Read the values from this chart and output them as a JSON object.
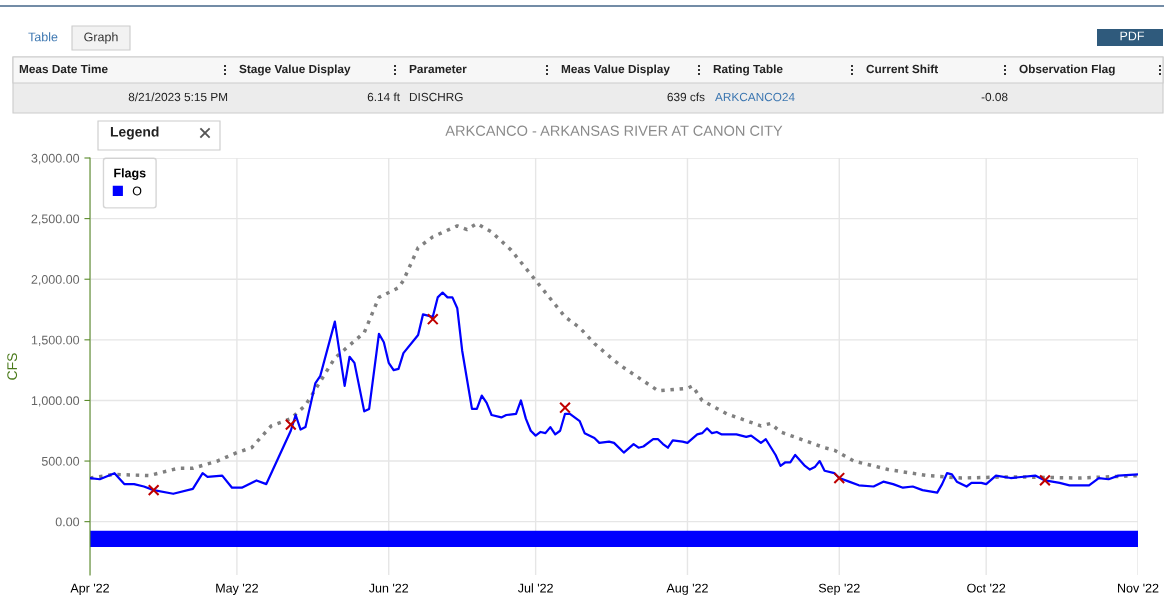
{
  "chart_data": {
    "type": "line",
    "title": "ARKCANCO - ARKANSAS RIVER AT CANON CITY",
    "ylabel": "CFS",
    "xlim": [
      "2022-04-01",
      "2022-11-01"
    ],
    "xticks": [
      {
        "value": "2022-04-01",
        "label": "Apr '22"
      },
      {
        "value": "2022-05-01",
        "label": "May '22"
      },
      {
        "value": "2022-06-01",
        "label": "Jun '22"
      },
      {
        "value": "2022-07-01",
        "label": "Jul '22"
      },
      {
        "value": "2022-08-01",
        "label": "Aug '22"
      },
      {
        "value": "2022-09-01",
        "label": "Sep '22"
      },
      {
        "value": "2022-10-01",
        "label": "Oct '22"
      },
      {
        "value": "2022-11-01",
        "label": "Nov '22"
      }
    ],
    "ylim": [
      -440,
      3000
    ],
    "yticks": [
      {
        "value": 0,
        "label": "0.00"
      },
      {
        "value": 500,
        "label": "500.00"
      },
      {
        "value": 1000,
        "label": "1,000.00"
      },
      {
        "value": 1500,
        "label": "1,500.00"
      },
      {
        "value": 2000,
        "label": "2,000.00"
      },
      {
        "value": 2500,
        "label": "2,500.00"
      },
      {
        "value": 3000,
        "label": "3,000.00"
      }
    ],
    "grid": true,
    "legend": "top left",
    "legend_title": "Flags",
    "bands": [
      {
        "axis": "y",
        "from": -210,
        "to": -75,
        "label": "O",
        "color": "#0000ff"
      }
    ],
    "series": [
      {
        "color": "#808080",
        "line_style": "dotted",
        "x": [
          "2022-04-01",
          "2022-04-06",
          "2022-04-13",
          "2022-04-19",
          "2022-04-22",
          "2022-04-27",
          "2022-05-01",
          "2022-05-04",
          "2022-05-08",
          "2022-05-12",
          "2022-05-15",
          "2022-05-21",
          "2022-05-27",
          "2022-05-30",
          "2022-06-03",
          "2022-06-04",
          "2022-06-07",
          "2022-06-10",
          "2022-06-15",
          "2022-06-17",
          "2022-06-19",
          "2022-06-22",
          "2022-06-26",
          "2022-07-01",
          "2022-07-07",
          "2022-07-10",
          "2022-07-13",
          "2022-07-17",
          "2022-07-19",
          "2022-07-26",
          "2022-08-01",
          "2022-08-02",
          "2022-08-04",
          "2022-08-09",
          "2022-08-16",
          "2022-08-18",
          "2022-08-20",
          "2022-08-29",
          "2022-08-31",
          "2022-09-04",
          "2022-09-11",
          "2022-09-19",
          "2022-09-26",
          "2022-10-06",
          "2022-10-20",
          "2022-11-01"
        ],
        "values": [
          360,
          390,
          380,
          440,
          440,
          500,
          570,
          610,
          790,
          850,
          960,
          1350,
          1560,
          1850,
          1930,
          1990,
          2260,
          2350,
          2440,
          2410,
          2460,
          2390,
          2240,
          1990,
          1690,
          1600,
          1470,
          1330,
          1270,
          1080,
          1100,
          1120,
          1000,
          890,
          790,
          810,
          740,
          610,
          590,
          500,
          430,
          380,
          360,
          370,
          360,
          380
        ]
      },
      {
        "color": "#0000ff",
        "line_style": "solid",
        "x": [
          "2022-04-01",
          "2022-04-03",
          "2022-04-06",
          "2022-04-08",
          "2022-04-10",
          "2022-04-12",
          "2022-04-14",
          "2022-04-18",
          "2022-04-22",
          "2022-04-24",
          "2022-04-25",
          "2022-04-28",
          "2022-04-30",
          "2022-05-02",
          "2022-05-05",
          "2022-05-07",
          "2022-05-12",
          "2022-05-13",
          "2022-05-14",
          "2022-05-15",
          "2022-05-17",
          "2022-05-18",
          "2022-05-21",
          "2022-05-23",
          "2022-05-24",
          "2022-05-25",
          "2022-05-27",
          "2022-05-28",
          "2022-05-30",
          "2022-05-31",
          "2022-06-01",
          "2022-06-02",
          "2022-06-03",
          "2022-06-04",
          "2022-06-07",
          "2022-06-08",
          "2022-06-10",
          "2022-06-11",
          "2022-06-12",
          "2022-06-13",
          "2022-06-14",
          "2022-06-15",
          "2022-06-16",
          "2022-06-18",
          "2022-06-19",
          "2022-06-20",
          "2022-06-21",
          "2022-06-22",
          "2022-06-24",
          "2022-06-25",
          "2022-06-27",
          "2022-06-28",
          "2022-06-29",
          "2022-06-30",
          "2022-07-01",
          "2022-07-02",
          "2022-07-03",
          "2022-07-04",
          "2022-07-05",
          "2022-07-06",
          "2022-07-07",
          "2022-07-08",
          "2022-07-10",
          "2022-07-11",
          "2022-07-13",
          "2022-07-14",
          "2022-07-16",
          "2022-07-17",
          "2022-07-19",
          "2022-07-21",
          "2022-07-22",
          "2022-07-23",
          "2022-07-25",
          "2022-07-26",
          "2022-07-27",
          "2022-07-28",
          "2022-07-29",
          "2022-07-31",
          "2022-08-01",
          "2022-08-03",
          "2022-08-04",
          "2022-08-05",
          "2022-08-06",
          "2022-08-07",
          "2022-08-08",
          "2022-08-11",
          "2022-08-13",
          "2022-08-14",
          "2022-08-16",
          "2022-08-17",
          "2022-08-19",
          "2022-08-20",
          "2022-08-21",
          "2022-08-22",
          "2022-08-23",
          "2022-08-25",
          "2022-08-26",
          "2022-08-27",
          "2022-08-28",
          "2022-08-29",
          "2022-08-31",
          "2022-09-01",
          "2022-09-03",
          "2022-09-05",
          "2022-09-08",
          "2022-09-10",
          "2022-09-12",
          "2022-09-14",
          "2022-09-16",
          "2022-09-18",
          "2022-09-21",
          "2022-09-22",
          "2022-09-23",
          "2022-09-24",
          "2022-09-25",
          "2022-09-27",
          "2022-09-28",
          "2022-09-30",
          "2022-10-01",
          "2022-10-03",
          "2022-10-06",
          "2022-10-11",
          "2022-10-13",
          "2022-10-16",
          "2022-10-18",
          "2022-10-22",
          "2022-10-24",
          "2022-10-26",
          "2022-10-28",
          "2022-11-01"
        ],
        "values": [
          360,
          350,
          400,
          310,
          310,
          290,
          260,
          230,
          270,
          400,
          370,
          380,
          280,
          280,
          340,
          310,
          750,
          880,
          760,
          780,
          1140,
          1200,
          1650,
          1120,
          1360,
          1310,
          910,
          930,
          1550,
          1480,
          1310,
          1250,
          1260,
          1390,
          1540,
          1710,
          1690,
          1850,
          1890,
          1850,
          1850,
          1760,
          1410,
          930,
          930,
          1040,
          980,
          880,
          860,
          880,
          890,
          1000,
          850,
          750,
          710,
          740,
          730,
          780,
          720,
          750,
          890,
          890,
          830,
          730,
          690,
          650,
          660,
          650,
          570,
          640,
          610,
          620,
          680,
          680,
          640,
          610,
          670,
          660,
          650,
          720,
          730,
          770,
          730,
          740,
          720,
          720,
          700,
          710,
          650,
          680,
          550,
          460,
          490,
          490,
          550,
          460,
          430,
          450,
          500,
          420,
          400,
          360,
          330,
          300,
          290,
          330,
          310,
          280,
          290,
          260,
          240,
          310,
          400,
          390,
          330,
          290,
          320,
          320,
          310,
          380,
          360,
          380,
          340,
          320,
          300,
          300,
          360,
          350,
          380,
          390
        ]
      },
      {
        "type": "scatter",
        "color": "#c00000",
        "marker": "cross",
        "x": [
          "2022-04-14",
          "2022-05-12",
          "2022-06-10",
          "2022-07-07",
          "2022-09-01",
          "2022-10-13"
        ],
        "values": [
          260,
          800,
          1670,
          940,
          360,
          340
        ]
      }
    ],
    "annotations": [
      "Table",
      "Graph",
      "PDF",
      "Legend",
      "Meas Date Time",
      "Stage Value Display",
      "Parameter",
      "Meas Value Display",
      "Rating Table",
      "Current Shift",
      "Observation Flag",
      "8/21/2023 5:15 PM",
      "6.14 ft",
      "DISCHRG",
      "639 cfs",
      "ARKCANCO24",
      "-0.08"
    ]
  }
}
